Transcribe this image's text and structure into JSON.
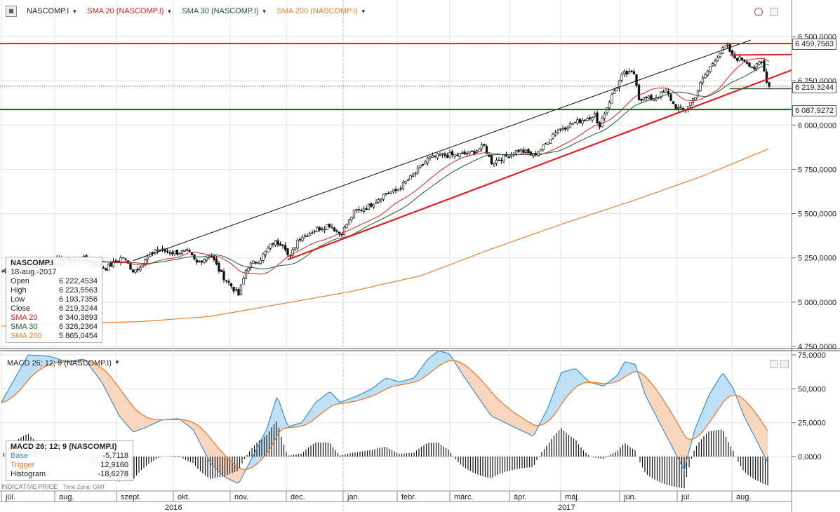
{
  "legend": {
    "icon": "chart-app-icon",
    "symbol": "NASCOMP.I",
    "sma20": "SMA 20 (NASCOMP.I)",
    "sma30": "SMA 30 (NASCOMP.I)",
    "sma200": "SMA 200 (NASCOMP.I)"
  },
  "colors": {
    "sma20": "#d42020",
    "sma30": "#1a5e2c",
    "sma200": "#f08030",
    "trend": "#e02020",
    "channel": "#000000",
    "support": "#1a5e2c",
    "macd_base": "#3a8fd0",
    "macd_trigger": "#f07020"
  },
  "price_tags": [
    "6 459,7563",
    "6 219,3244",
    "6 087,9272"
  ],
  "price_axis": [
    "6 500,0000",
    "6 250,0000",
    "6 000,0000",
    "5 750,0000",
    "5 500,0000",
    "5 250,0000",
    "5 000,0000",
    "4 750,0000"
  ],
  "macd_axis": [
    "75,0000",
    "50,0000",
    "25,0000",
    "0,0000"
  ],
  "months": [
    "júl.",
    "aug.",
    "szept.",
    "okt.",
    "nov.",
    "dec.",
    "jan.",
    "febr.",
    "márc.",
    "ápr.",
    "máj.",
    "jún.",
    "júl.",
    "aug."
  ],
  "years": [
    "2016",
    "2017"
  ],
  "info": {
    "title": "NASCOMP.I",
    "date": "18-aug.-2017",
    "rows": [
      {
        "label": "Open",
        "value": "6 222,4534"
      },
      {
        "label": "High",
        "value": "6 223,5563"
      },
      {
        "label": "Low",
        "value": "6 193,7356"
      },
      {
        "label": "Close",
        "value": "6 219,3244"
      },
      {
        "label": "SMA 20",
        "value": "6 340,3893"
      },
      {
        "label": "SMA 30",
        "value": "6 328,2364"
      },
      {
        "label": "SMA 200",
        "value": "5 865,0454"
      }
    ]
  },
  "macd": {
    "legend": "MACD 26; 12; 9 (NASCOMP.I)",
    "title": "MACD 26; 12; 9 (NASCOMP.I)",
    "rows": [
      {
        "label": "Base",
        "value": "-5,7118"
      },
      {
        "label": "Trigger",
        "value": "12,9160"
      },
      {
        "label": "Histogram",
        "value": "-18,6278"
      }
    ]
  },
  "footer": {
    "note": "INDICATIVE PRICE",
    "tz": "Time Zone: GMT"
  },
  "chart_data": [
    {
      "type": "candlestick",
      "title": "NASCOMP.I",
      "ylim": [
        4750,
        6560
      ],
      "series": [
        {
          "name": "NASCOMP.I",
          "monthly_close": [
            {
              "x": "2016-07",
              "y": 5160
            },
            {
              "x": "2016-08",
              "y": 5213
            },
            {
              "x": "2016-09",
              "y": 5312
            },
            {
              "x": "2016-10",
              "y": 5189
            },
            {
              "x": "2016-11",
              "y": 5323
            },
            {
              "x": "2016-12",
              "y": 5383
            },
            {
              "x": "2017-01",
              "y": 5615
            },
            {
              "x": "2017-02",
              "y": 5825
            },
            {
              "x": "2017-03",
              "y": 5912
            },
            {
              "x": "2017-04",
              "y": 6047
            },
            {
              "x": "2017-05",
              "y": 6198
            },
            {
              "x": "2017-06",
              "y": 6140
            },
            {
              "x": "2017-07",
              "y": 6348
            },
            {
              "x": "2017-08",
              "y": 6219
            }
          ]
        },
        {
          "name": "SMA 20",
          "last": 6340.3893
        },
        {
          "name": "SMA 30",
          "last": 6328.2364
        },
        {
          "name": "SMA 200",
          "last": 5865.0454
        }
      ],
      "horizontal_lines": [
        6459.7563,
        6219.3244,
        6087.9272
      ]
    },
    {
      "type": "macd",
      "title": "MACD 26; 12; 9 (NASCOMP.I)",
      "ylim": [
        -20,
        75
      ],
      "series": [
        {
          "name": "Base",
          "last": -5.7118
        },
        {
          "name": "Trigger",
          "last": 12.916
        },
        {
          "name": "Histogram",
          "last": -18.6278
        }
      ]
    }
  ]
}
